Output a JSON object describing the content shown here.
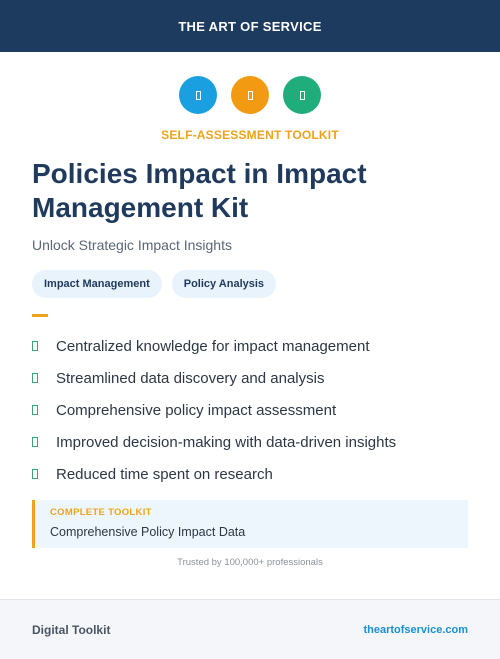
{
  "colors": {
    "header_bg": "#1d3a5f",
    "accent_orange": "#efa21b",
    "accent_blue": "#1a9fe0",
    "accent_green": "#1fad7c",
    "check_green": "#3aa571",
    "link_blue": "#1a8fd6"
  },
  "header": {
    "brand": "THE ART OF SERVICE"
  },
  "hero": {
    "icons": [
      {
        "name": "blue-circle-icon",
        "color": "#1a9fe0"
      },
      {
        "name": "orange-circle-icon",
        "color": "#f29a12"
      },
      {
        "name": "green-circle-icon",
        "color": "#1fad7c"
      }
    ],
    "kicker": "SELF-ASSESSMENT TOOLKIT",
    "title": "Policies Impact in Impact Management Kit",
    "subtitle": "Unlock Strategic Impact Insights"
  },
  "tags": [
    "Impact Management",
    "Policy Analysis"
  ],
  "features": [
    "Centralized knowledge for impact management",
    "Streamlined data discovery and analysis",
    "Comprehensive policy impact assessment",
    "Improved decision-making with data-driven insights",
    "Reduced time spent on research"
  ],
  "callout": {
    "label": "COMPLETE TOOLKIT",
    "value": "Comprehensive Policy Impact Data"
  },
  "trusted": "Trusted by 100,000+ professionals",
  "footer": {
    "left": "Digital Toolkit",
    "right": "theartofservice.com"
  }
}
